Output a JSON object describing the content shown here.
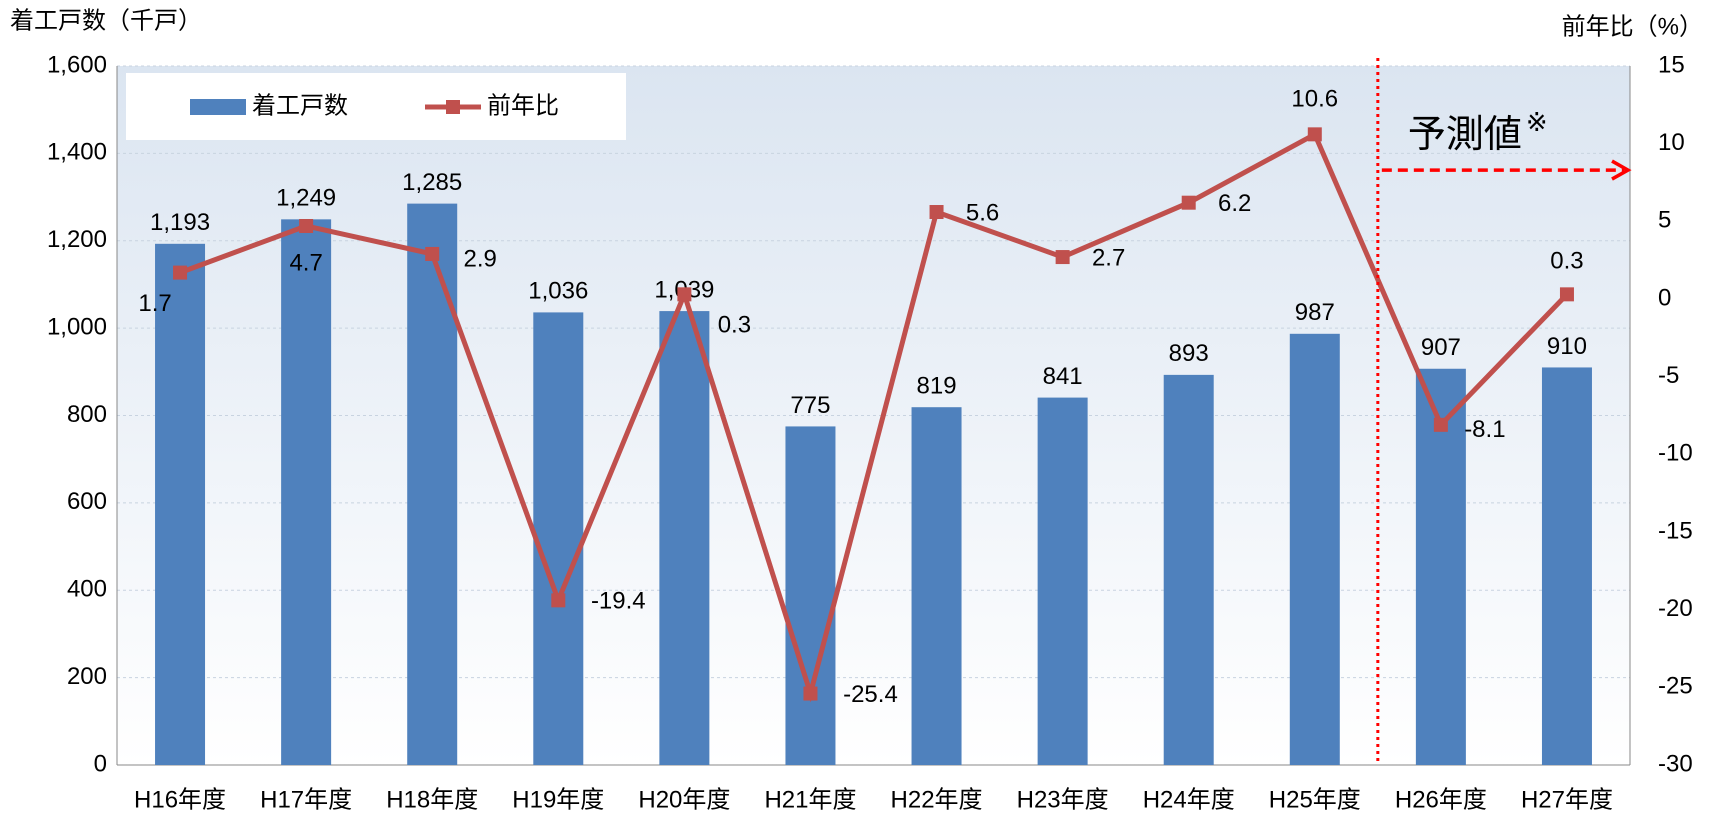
{
  "chart_data": {
    "type": "bar_line",
    "y_axis_label": "着工戸数（千戸）",
    "y2_axis_label": "前年比（%）",
    "categories": [
      "H16年度",
      "H17年度",
      "H18年度",
      "H19年度",
      "H20年度",
      "H21年度",
      "H22年度",
      "H23年度",
      "H24年度",
      "H25年度",
      "H26年度",
      "H27年度"
    ],
    "series": [
      {
        "name": "着工戸数",
        "type": "bar",
        "color": "#4f81bd",
        "values": [
          1193,
          1249,
          1285,
          1036,
          1039,
          775,
          819,
          841,
          893,
          987,
          907,
          910
        ],
        "value_labels": [
          "1,193",
          "1,249",
          "1,285",
          "1,036",
          "1,039",
          "775",
          "819",
          "841",
          "893",
          "987",
          "907",
          "910"
        ]
      },
      {
        "name": "前年比",
        "type": "line",
        "axis": "y2",
        "color": "#c0504d",
        "values": [
          1.7,
          4.7,
          2.9,
          -19.4,
          0.3,
          -25.4,
          5.6,
          2.7,
          6.2,
          10.6,
          -8.1,
          0.3
        ]
      }
    ],
    "negative_label_color": "#ff0000",
    "ylim": [
      0,
      1600
    ],
    "yticks": [
      0,
      200,
      400,
      600,
      800,
      {
        "value": 1000,
        "label": "1,000"
      },
      {
        "value": 1200,
        "label": "1,200"
      },
      {
        "value": 1400,
        "label": "1,400"
      },
      {
        "value": 1600,
        "label": "1,600"
      }
    ],
    "y2lim": [
      -30,
      15
    ],
    "y2ticks": [
      -30,
      -25,
      -20,
      -15,
      -10,
      -5,
      0,
      5,
      10,
      15
    ],
    "grid": true,
    "legend": "top-left",
    "annotation": "予測値",
    "annotation_mark": "※",
    "annotation_color": "#ff0000"
  }
}
